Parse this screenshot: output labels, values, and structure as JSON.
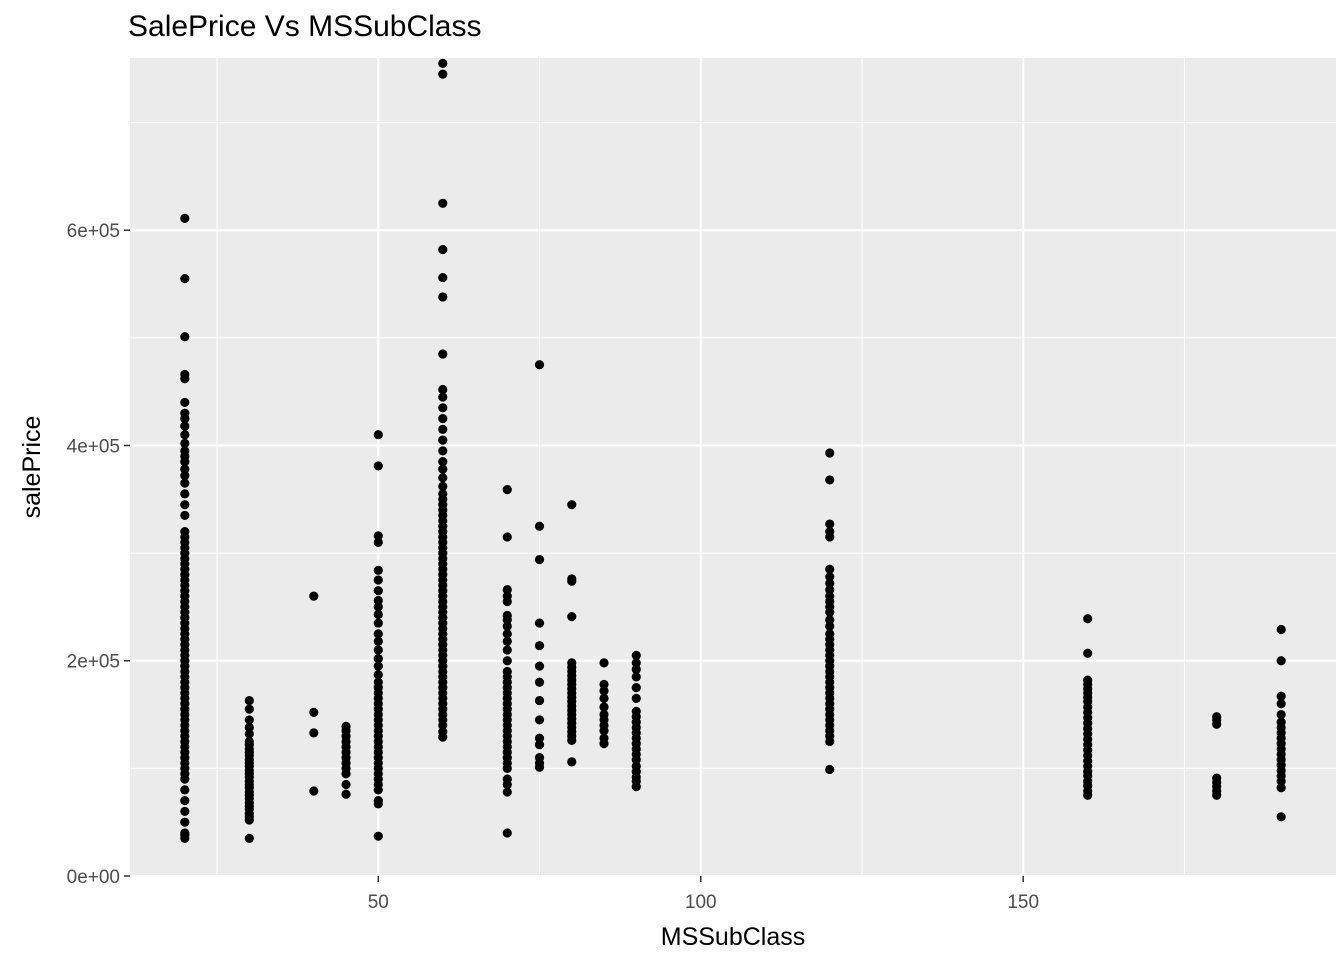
{
  "chart_data": {
    "type": "scatter",
    "title": "SalePrice Vs MSSubClass",
    "xlabel": "MSSubClass",
    "ylabel": "salePrice",
    "xlim": [
      11.5,
      198.5
    ],
    "ylim": [
      0,
      760000
    ],
    "x_ticks": [
      50,
      100,
      150
    ],
    "x_tick_labels": [
      "50",
      "100",
      "150"
    ],
    "x_minor_ticks": [
      25,
      75,
      125,
      175
    ],
    "y_ticks": [
      0,
      200000,
      400000,
      600000
    ],
    "y_tick_labels": [
      "0e+00",
      "2e+05",
      "4e+05",
      "6e+05"
    ],
    "y_minor_ticks": [
      100000,
      300000,
      500000,
      700000
    ],
    "grid": true,
    "background": "#ebebeb",
    "grid_color": "#ffffff",
    "point_color": "#000000",
    "groups": [
      {
        "x": 20,
        "y": [
          35000,
          38000,
          40000,
          50000,
          60000,
          70000,
          80000,
          90000,
          95000,
          100000,
          105000,
          110000,
          115000,
          120000,
          125000,
          130000,
          135000,
          140000,
          145000,
          150000,
          155000,
          160000,
          165000,
          170000,
          175000,
          180000,
          185000,
          190000,
          195000,
          200000,
          205000,
          210000,
          215000,
          220000,
          225000,
          230000,
          235000,
          240000,
          245000,
          250000,
          255000,
          260000,
          265000,
          270000,
          275000,
          280000,
          285000,
          290000,
          295000,
          300000,
          305000,
          310000,
          315000,
          320000,
          335000,
          345000,
          355000,
          365000,
          372000,
          378000,
          385000,
          390000,
          395000,
          402000,
          410000,
          418000,
          425000,
          430000,
          440000,
          462000,
          466000,
          501000,
          555000,
          611000
        ]
      },
      {
        "x": 30,
        "y": [
          35000,
          52000,
          55000,
          58000,
          62000,
          65000,
          68000,
          72000,
          75000,
          78000,
          82000,
          85000,
          88000,
          92000,
          95000,
          98000,
          102000,
          105000,
          108000,
          112000,
          115000,
          118000,
          122000,
          125000,
          132000,
          138000,
          145000,
          155000,
          163000
        ]
      },
      {
        "x": 40,
        "y": [
          79000,
          133000,
          152000,
          260000
        ]
      },
      {
        "x": 45,
        "y": [
          76000,
          85000,
          95000,
          100000,
          105000,
          110000,
          115000,
          120000,
          125000,
          130000,
          135000,
          139000
        ]
      },
      {
        "x": 50,
        "y": [
          37000,
          67000,
          70000,
          80000,
          85000,
          90000,
          95000,
          100000,
          105000,
          110000,
          115000,
          120000,
          125000,
          130000,
          135000,
          140000,
          145000,
          150000,
          155000,
          160000,
          165000,
          170000,
          175000,
          180000,
          187000,
          195000,
          202000,
          210000,
          218000,
          225000,
          235000,
          243000,
          250000,
          256000,
          265000,
          275000,
          284000,
          310000,
          316000,
          381000,
          410000
        ]
      },
      {
        "x": 60,
        "y": [
          129000,
          134000,
          140000,
          145000,
          150000,
          155000,
          160000,
          165000,
          170000,
          175000,
          180000,
          185000,
          190000,
          195000,
          200000,
          205000,
          210000,
          215000,
          220000,
          225000,
          230000,
          235000,
          240000,
          245000,
          250000,
          255000,
          260000,
          265000,
          270000,
          275000,
          280000,
          285000,
          290000,
          295000,
          300000,
          305000,
          310000,
          315000,
          320000,
          325000,
          330000,
          335000,
          340000,
          345000,
          350000,
          355000,
          362000,
          370000,
          378000,
          385000,
          395000,
          405000,
          415000,
          425000,
          435000,
          445000,
          452000,
          485000,
          538000,
          556000,
          582000,
          625000,
          745000,
          755000
        ]
      },
      {
        "x": 70,
        "y": [
          40000,
          78000,
          85000,
          90000,
          100000,
          105000,
          110000,
          115000,
          120000,
          125000,
          130000,
          135000,
          140000,
          145000,
          150000,
          155000,
          160000,
          165000,
          170000,
          175000,
          180000,
          185000,
          190000,
          200000,
          210000,
          218000,
          225000,
          232000,
          238000,
          242000,
          255000,
          260000,
          266000,
          315000,
          359000
        ]
      },
      {
        "x": 75,
        "y": [
          101000,
          105000,
          110000,
          122000,
          128000,
          145000,
          163000,
          180000,
          195000,
          214000,
          235000,
          294000,
          325000,
          475000
        ]
      },
      {
        "x": 80,
        "y": [
          106000,
          126000,
          130000,
          134000,
          138000,
          142000,
          146000,
          150000,
          154000,
          158000,
          162000,
          166000,
          170000,
          174000,
          178000,
          182000,
          186000,
          190000,
          194000,
          198000,
          241000,
          274000,
          276000,
          345000
        ]
      },
      {
        "x": 85,
        "y": [
          123000,
          128000,
          135000,
          140000,
          145000,
          150000,
          157000,
          165000,
          172000,
          178000,
          198000
        ]
      },
      {
        "x": 90,
        "y": [
          83000,
          88000,
          92000,
          97000,
          102000,
          108000,
          113000,
          118000,
          123000,
          128000,
          133000,
          138000,
          143000,
          148000,
          153000,
          165000,
          175000,
          185000,
          192000,
          198000,
          205000
        ]
      },
      {
        "x": 120,
        "y": [
          99000,
          125000,
          130000,
          135000,
          140000,
          145000,
          150000,
          155000,
          160000,
          165000,
          170000,
          175000,
          180000,
          185000,
          190000,
          195000,
          200000,
          205000,
          210000,
          215000,
          220000,
          225000,
          232000,
          238000,
          245000,
          250000,
          255000,
          260000,
          266000,
          272000,
          278000,
          285000,
          315000,
          320000,
          327000,
          368000,
          393000
        ]
      },
      {
        "x": 160,
        "y": [
          75000,
          79000,
          84000,
          88000,
          93000,
          97000,
          102000,
          107000,
          112000,
          117000,
          122000,
          127000,
          132000,
          137000,
          142000,
          147000,
          152000,
          157000,
          162000,
          166000,
          170000,
          174000,
          178000,
          182000,
          207000,
          239000
        ]
      },
      {
        "x": 180,
        "y": [
          75000,
          79000,
          83000,
          87000,
          91000,
          141000,
          145000,
          148000
        ]
      },
      {
        "x": 190,
        "y": [
          55000,
          82000,
          88000,
          93000,
          98000,
          103000,
          108000,
          113000,
          118000,
          123000,
          128000,
          133000,
          138000,
          143000,
          150000,
          160000,
          167000,
          200000,
          229000
        ]
      }
    ]
  }
}
